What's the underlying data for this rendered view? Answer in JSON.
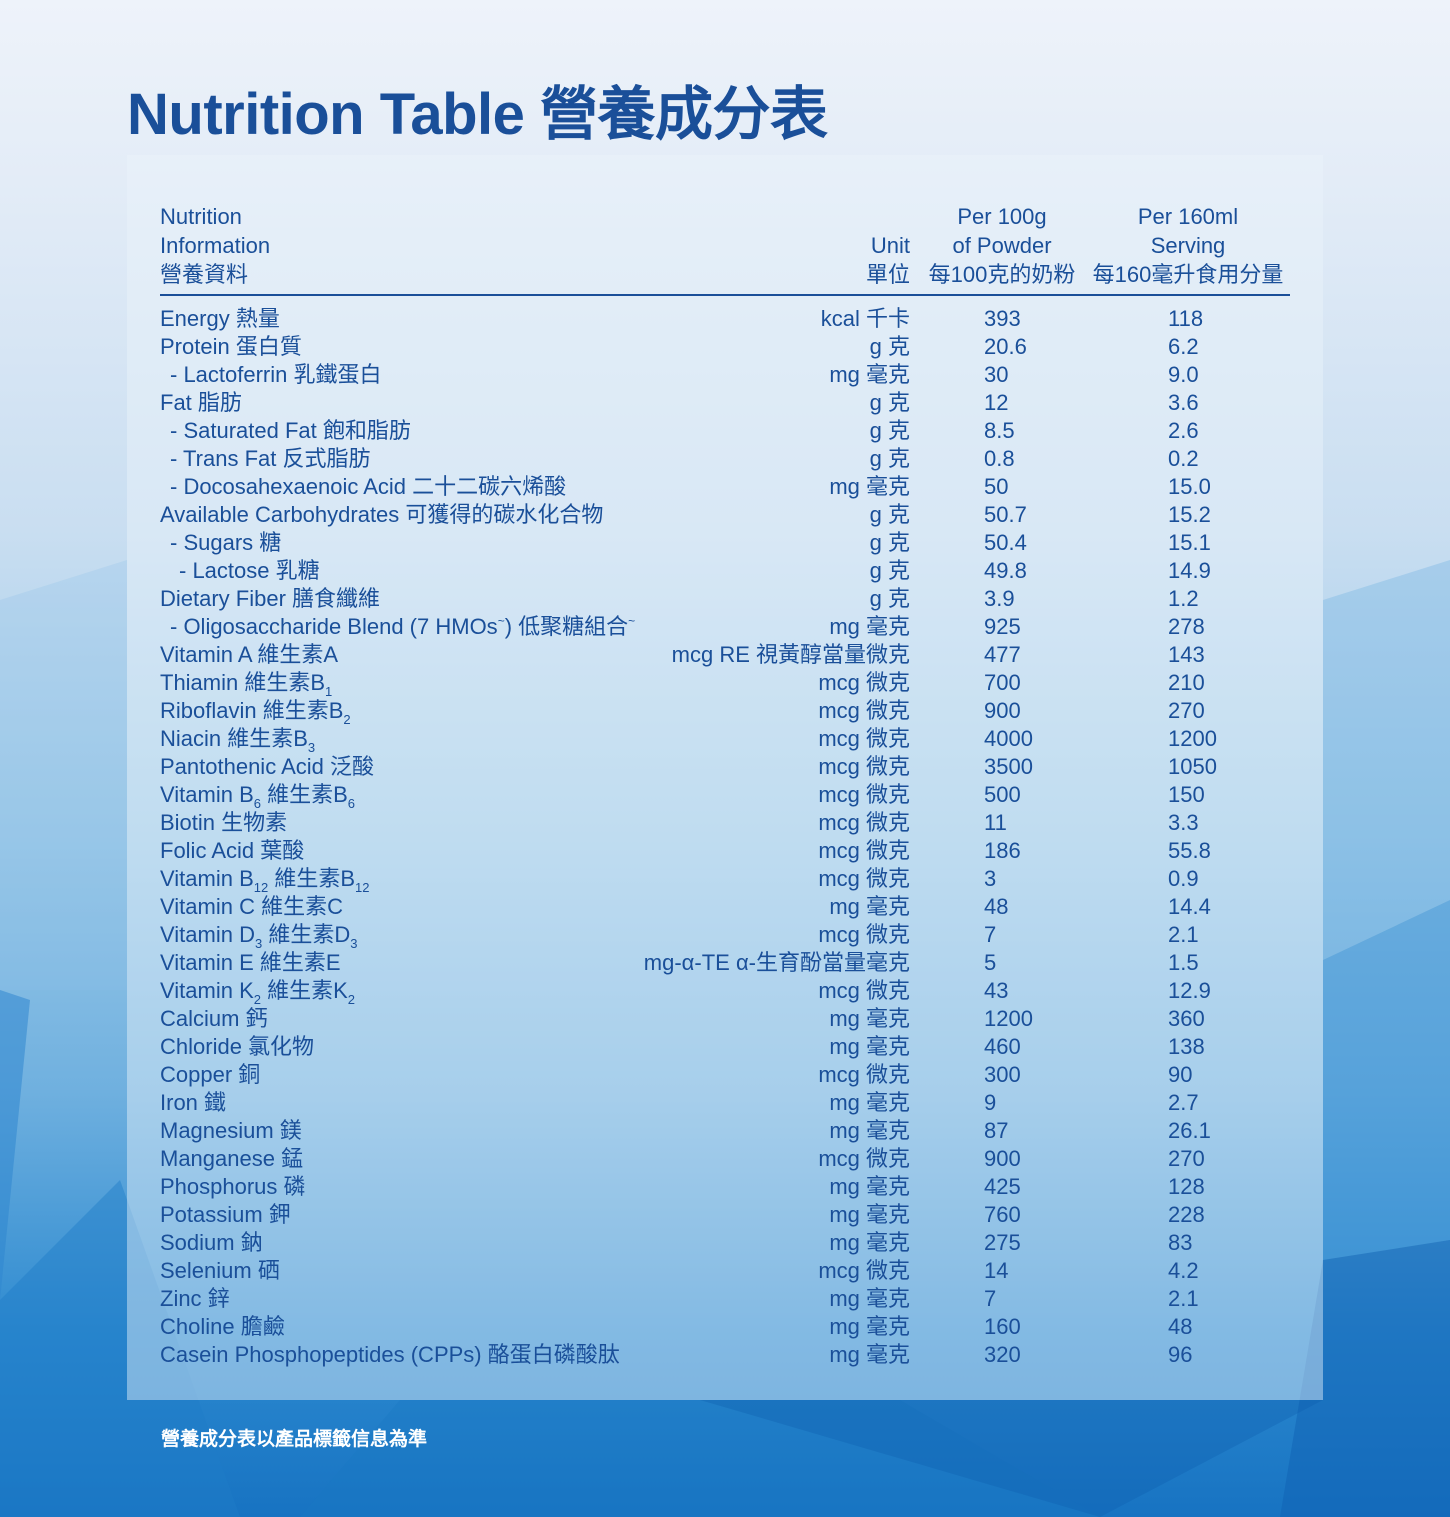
{
  "page": {
    "title": "Nutrition Table 營養成分表",
    "footnote": "營養成分表以產品標籤信息為準"
  },
  "colors": {
    "text_primary": "#1a4f99",
    "footnote_text": "#ffffff",
    "background_top": "#eef3fa",
    "background_bottom": "#1773c2"
  },
  "table": {
    "headers": {
      "name": [
        "Nutrition",
        "Information",
        "營養資料"
      ],
      "unit": [
        "Unit",
        "單位"
      ],
      "per_100g": [
        "Per 100g",
        "of Powder",
        "每100克的奶粉"
      ],
      "per_160ml": [
        "Per 160ml",
        "Serving",
        "每160毫升食用分量"
      ]
    },
    "rows": [
      {
        "indent": 0,
        "name": [
          [
            "Energy 熱量"
          ]
        ],
        "unit": "kcal 千卡",
        "per_100g": "393",
        "per_160ml": "118"
      },
      {
        "indent": 0,
        "name": [
          [
            "Protein 蛋白質"
          ]
        ],
        "unit": "g 克",
        "per_100g": "20.6",
        "per_160ml": "6.2"
      },
      {
        "indent": 1,
        "name": [
          [
            "- Lactoferrin 乳鐵蛋白"
          ]
        ],
        "unit": "mg 毫克",
        "per_100g": "30",
        "per_160ml": "9.0"
      },
      {
        "indent": 0,
        "name": [
          [
            "Fat 脂肪"
          ]
        ],
        "unit": "g 克",
        "per_100g": "12",
        "per_160ml": "3.6"
      },
      {
        "indent": 1,
        "name": [
          [
            "- Saturated Fat 飽和脂肪"
          ]
        ],
        "unit": "g 克",
        "per_100g": "8.5",
        "per_160ml": "2.6"
      },
      {
        "indent": 1,
        "name": [
          [
            "- Trans Fat 反式脂肪"
          ]
        ],
        "unit": "g 克",
        "per_100g": "0.8",
        "per_160ml": "0.2"
      },
      {
        "indent": 1,
        "name": [
          [
            "- Docosahexaenoic Acid 二十二碳六烯酸"
          ]
        ],
        "unit": "mg 毫克",
        "per_100g": "50",
        "per_160ml": "15.0"
      },
      {
        "indent": 0,
        "name": [
          [
            "Available Carbohydrates 可獲得的碳水化合物"
          ]
        ],
        "unit": "g 克",
        "per_100g": "50.7",
        "per_160ml": "15.2"
      },
      {
        "indent": 1,
        "name": [
          [
            "- Sugars 糖"
          ]
        ],
        "unit": "g 克",
        "per_100g": "50.4",
        "per_160ml": "15.1"
      },
      {
        "indent": 2,
        "name": [
          [
            "- Lactose 乳糖"
          ]
        ],
        "unit": "g 克",
        "per_100g": "49.8",
        "per_160ml": "14.9"
      },
      {
        "indent": 0,
        "name": [
          [
            "Dietary Fiber 膳食纖維"
          ]
        ],
        "unit": "g 克",
        "per_100g": "3.9",
        "per_160ml": "1.2"
      },
      {
        "indent": 1,
        "name": [
          [
            "- Oligosaccharide Blend (7 HMOs"
          ],
          [
            "~",
            "sup"
          ],
          [
            ") 低聚糖組合"
          ],
          [
            "~",
            "sup"
          ]
        ],
        "unit": "mg 毫克",
        "per_100g": "925",
        "per_160ml": "278"
      },
      {
        "indent": 0,
        "name": [
          [
            "Vitamin A 維生素A"
          ]
        ],
        "unit": "mcg RE 視黃醇當量微克",
        "per_100g": "477",
        "per_160ml": "143"
      },
      {
        "indent": 0,
        "name": [
          [
            "Thiamin 維生素B"
          ],
          [
            "1",
            "sub"
          ]
        ],
        "unit": "mcg 微克",
        "per_100g": "700",
        "per_160ml": "210"
      },
      {
        "indent": 0,
        "name": [
          [
            "Riboflavin 維生素B"
          ],
          [
            "2",
            "sub"
          ]
        ],
        "unit": "mcg 微克",
        "per_100g": "900",
        "per_160ml": "270"
      },
      {
        "indent": 0,
        "name": [
          [
            "Niacin 維生素B"
          ],
          [
            "3",
            "sub"
          ]
        ],
        "unit": "mcg 微克",
        "per_100g": "4000",
        "per_160ml": "1200"
      },
      {
        "indent": 0,
        "name": [
          [
            "Pantothenic Acid 泛酸"
          ]
        ],
        "unit": "mcg 微克",
        "per_100g": "3500",
        "per_160ml": "1050"
      },
      {
        "indent": 0,
        "name": [
          [
            "Vitamin B"
          ],
          [
            "6",
            "sub"
          ],
          [
            " 維生素B"
          ],
          [
            "6",
            "sub"
          ]
        ],
        "unit": "mcg 微克",
        "per_100g": "500",
        "per_160ml": "150"
      },
      {
        "indent": 0,
        "name": [
          [
            "Biotin 生物素"
          ]
        ],
        "unit": "mcg 微克",
        "per_100g": "11",
        "per_160ml": "3.3"
      },
      {
        "indent": 0,
        "name": [
          [
            "Folic Acid 葉酸"
          ]
        ],
        "unit": "mcg 微克",
        "per_100g": "186",
        "per_160ml": "55.8"
      },
      {
        "indent": 0,
        "name": [
          [
            "Vitamin B"
          ],
          [
            "12",
            "sub"
          ],
          [
            "  維生素B"
          ],
          [
            "12",
            "sub"
          ]
        ],
        "unit": "mcg 微克",
        "per_100g": "3",
        "per_160ml": "0.9"
      },
      {
        "indent": 0,
        "name": [
          [
            "Vitamin C 維生素C"
          ]
        ],
        "unit": "mg 毫克",
        "per_100g": "48",
        "per_160ml": "14.4"
      },
      {
        "indent": 0,
        "name": [
          [
            "Vitamin D"
          ],
          [
            "3",
            "sub"
          ],
          [
            " 維生素D"
          ],
          [
            "3",
            "sub"
          ]
        ],
        "unit": "mcg 微克",
        "per_100g": "7",
        "per_160ml": "2.1"
      },
      {
        "indent": 0,
        "name": [
          [
            "Vitamin E 維生素E"
          ]
        ],
        "unit": "mg-α-TE α-生育酚當量毫克",
        "per_100g": "5",
        "per_160ml": "1.5"
      },
      {
        "indent": 0,
        "name": [
          [
            "Vitamin K"
          ],
          [
            "2",
            "sub"
          ],
          [
            " 維生素K"
          ],
          [
            "2",
            "sub"
          ]
        ],
        "unit": "mcg 微克",
        "per_100g": "43",
        "per_160ml": "12.9"
      },
      {
        "indent": 0,
        "name": [
          [
            "Calcium 鈣"
          ]
        ],
        "unit": "mg 毫克",
        "per_100g": "1200",
        "per_160ml": "360"
      },
      {
        "indent": 0,
        "name": [
          [
            "Chloride 氯化物"
          ]
        ],
        "unit": "mg 毫克",
        "per_100g": "460",
        "per_160ml": "138"
      },
      {
        "indent": 0,
        "name": [
          [
            "Copper 銅"
          ]
        ],
        "unit": "mcg 微克",
        "per_100g": "300",
        "per_160ml": "90"
      },
      {
        "indent": 0,
        "name": [
          [
            "Iron 鐵"
          ]
        ],
        "unit": "mg 毫克",
        "per_100g": "9",
        "per_160ml": "2.7"
      },
      {
        "indent": 0,
        "name": [
          [
            "Magnesium 鎂"
          ]
        ],
        "unit": "mg 毫克",
        "per_100g": "87",
        "per_160ml": "26.1"
      },
      {
        "indent": 0,
        "name": [
          [
            "Manganese 錳"
          ]
        ],
        "unit": "mcg 微克",
        "per_100g": "900",
        "per_160ml": "270"
      },
      {
        "indent": 0,
        "name": [
          [
            "Phosphorus 磷"
          ]
        ],
        "unit": "mg 毫克",
        "per_100g": "425",
        "per_160ml": "128"
      },
      {
        "indent": 0,
        "name": [
          [
            "Potassium 鉀"
          ]
        ],
        "unit": "mg 毫克",
        "per_100g": "760",
        "per_160ml": "228"
      },
      {
        "indent": 0,
        "name": [
          [
            "Sodium 鈉"
          ]
        ],
        "unit": "mg 毫克",
        "per_100g": "275",
        "per_160ml": "83"
      },
      {
        "indent": 0,
        "name": [
          [
            "Selenium 硒"
          ]
        ],
        "unit": "mcg 微克",
        "per_100g": "14",
        "per_160ml": "4.2"
      },
      {
        "indent": 0,
        "name": [
          [
            "Zinc 鋅"
          ]
        ],
        "unit": "mg 毫克",
        "per_100g": "7",
        "per_160ml": "2.1"
      },
      {
        "indent": 0,
        "name": [
          [
            "Choline 膽鹼"
          ]
        ],
        "unit": "mg 毫克",
        "per_100g": "160",
        "per_160ml": "48"
      },
      {
        "indent": 0,
        "name": [
          [
            "Casein Phosphopeptides (CPPs) 酪蛋白磷酸肽"
          ]
        ],
        "unit": "mg 毫克",
        "per_100g": "320",
        "per_160ml": "96"
      }
    ]
  }
}
